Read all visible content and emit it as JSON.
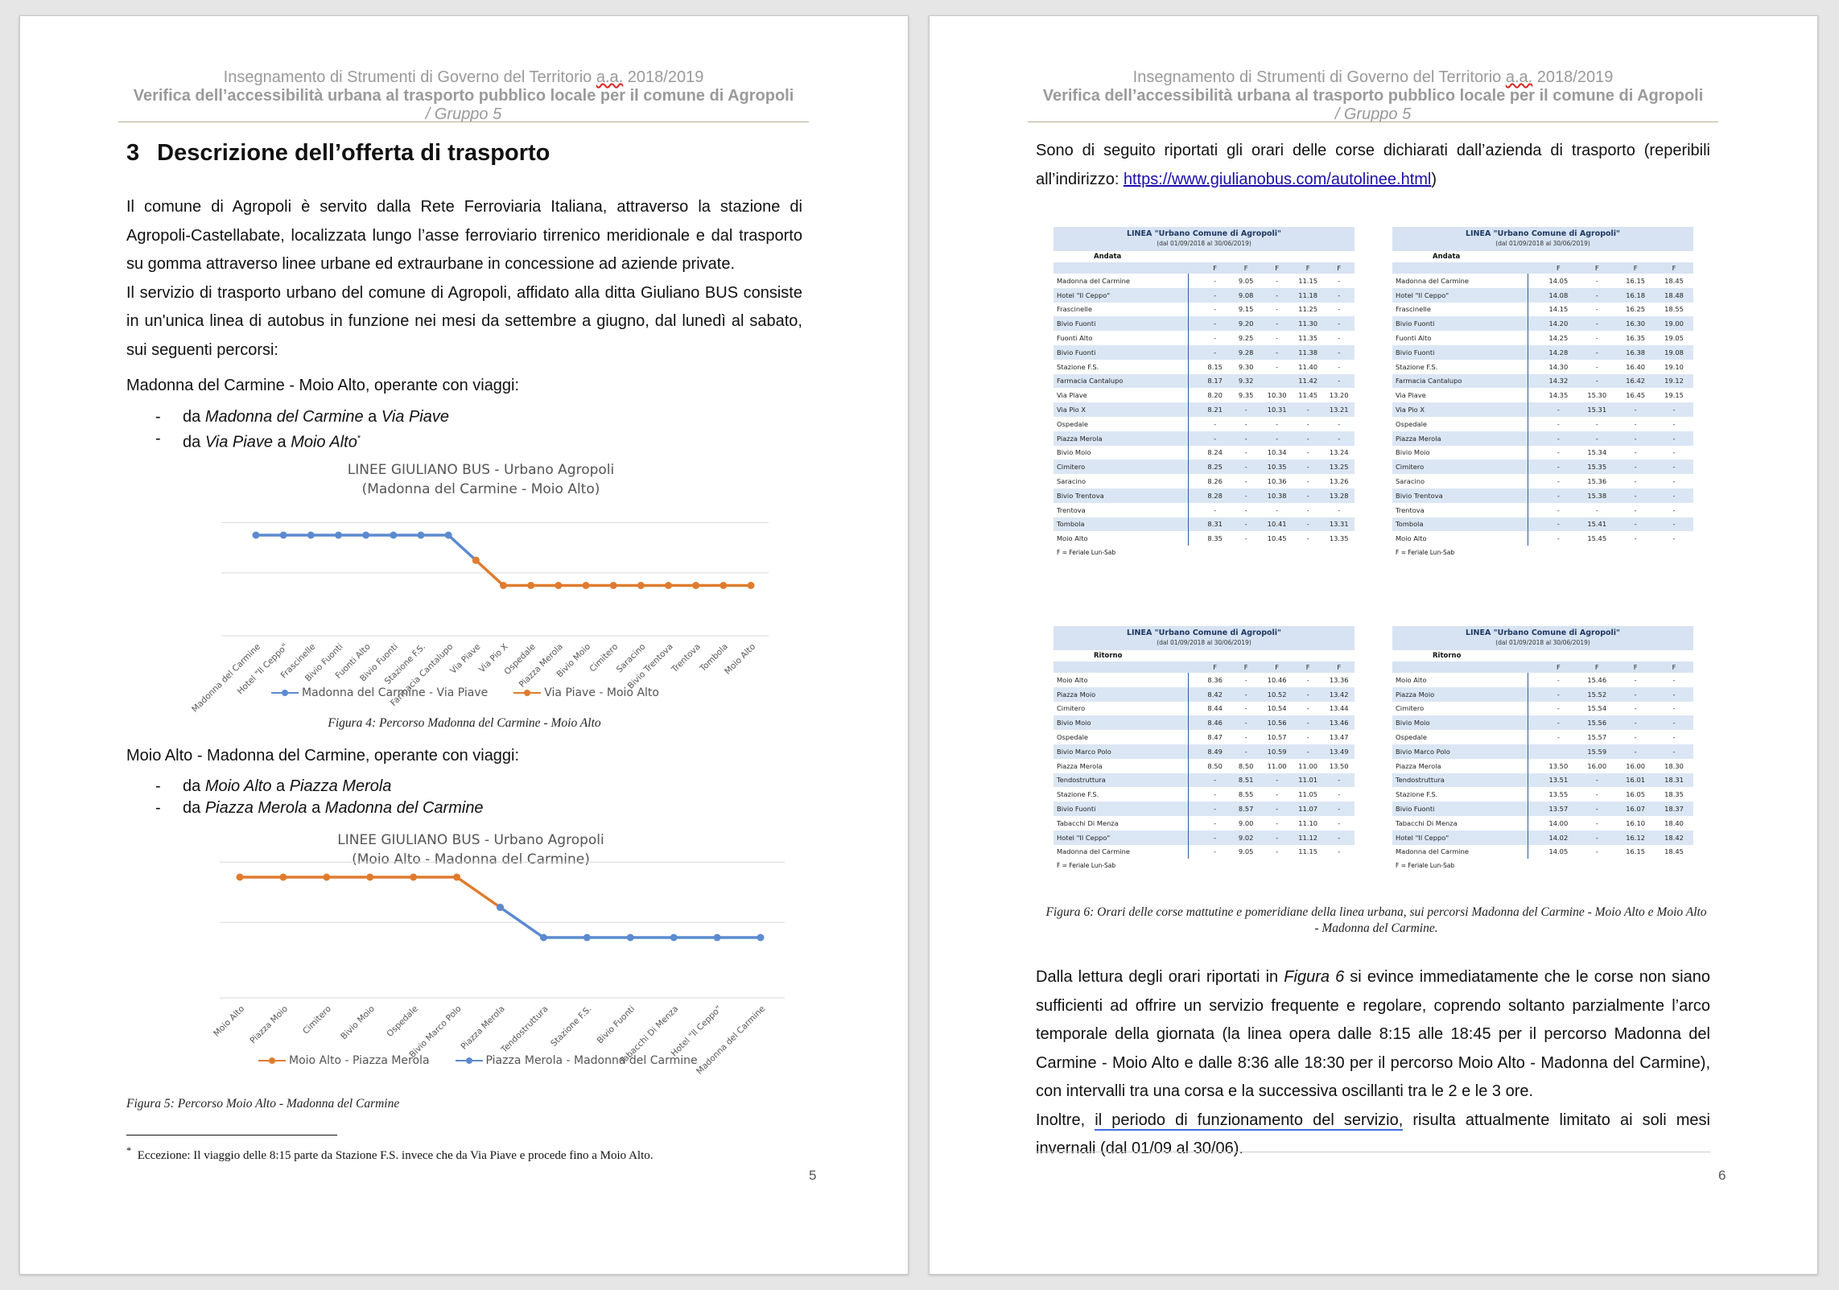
{
  "header": {
    "line1_pre": "Insegnamento di Strumenti di Governo del Territorio ",
    "line1_sq": "a.a.",
    "line1_post": " 2018/2019",
    "line2": "Verifica dell’accessibilità urbana al trasporto pubblico locale per il comune di Agropoli",
    "line3": "/ Gruppo 5"
  },
  "left": {
    "page_number": "5",
    "section_num": "3",
    "section_title": "Descrizione dell’offerta di trasporto",
    "para1": "Il comune di Agropoli è servito dalla Rete Ferroviaria Italiana, attraverso la stazione di Agropoli-Castellabate, localizzata lungo l’asse ferroviario tirrenico meridionale e dal trasporto su gomma attraverso linee urbane ed extraurbane in concessione ad aziende private.",
    "para2": "Il servizio di trasporto urbano del comune di Agropoli, affidato alla ditta Giuliano BUS consiste in un'unica linea di autobus in funzione nei mesi da settembre a giugno, dal lunedì al sabato, sui seguenti percorsi:",
    "route1_intro": "Madonna del Carmine - Moio Alto, operante con viaggi:",
    "route1_items": [
      {
        "a": "da ",
        "b": "Madonna del Carmine",
        "c": " a ",
        "d": "Via Piave",
        "sup": ""
      },
      {
        "a": "da ",
        "b": "Via Piave",
        "c": " a ",
        "d": "Moio Alto",
        "sup": "*"
      }
    ],
    "route2_intro": "Moio Alto - Madonna del Carmine, operante con viaggi:",
    "route2_items": [
      {
        "a": "da ",
        "b": "Moio Alto",
        "c": " a ",
        "d": "Piazza Merola",
        "sup": ""
      },
      {
        "a": "da ",
        "b": "Piazza Merola",
        "c": " a ",
        "d": "Madonna del Carmine",
        "sup": ""
      }
    ],
    "fig4_caption": "Figura 4: Percorso Madonna del Carmine - Moio Alto",
    "fig5_caption": "Figura 5: Percorso Moio Alto - Madonna del Carmine",
    "footnote_mark": "*",
    "footnote": "Eccezione: Il viaggio delle 8:15 parte da Stazione F.S. invece che da Via Piave e procede fino a Moio Alto."
  },
  "right": {
    "page_number": "6",
    "intro_pre": "Sono di seguito riportati gli orari delle corse dichiarati dall’azienda di trasporto (reperibili all’indirizzo: ",
    "intro_link": "https://www.giulianobus.com/autolinee.html",
    "intro_post": ")",
    "fig6_caption": "Figura 6: Orari delle corse mattutine e pomeridiane della linea urbana, sui percorsi Madonna del Carmine - Moio Alto e Moio Alto - Madonna del Carmine.",
    "para1_pre": "Dalla lettura degli orari riportati in ",
    "para1_fig": "Figura 6",
    "para1_post": " si evince immediatamente che le corse non siano sufficienti ad offrire un servizio frequente e regolare, coprendo soltanto parzialmente l’arco temporale della giornata (la linea opera dalle 8:15 alle 18:45 per il percorso Madonna del Carmine - Moio Alto e dalle 8:36 alle 18:30 per il percorso Moio Alto - Madonna del Carmine), con intervalli tra una corsa e la successiva oscillanti tra le 2 e le 3 ore.",
    "para2_pre": "Inoltre, ",
    "para2_ul": "il periodo di funzionamento del servizio,",
    "para2_post": " risulta attualmente limitato ai soli mesi invernali (dal 01/09 al 30/06)."
  },
  "timetables": [
    {
      "title": "LINEA \"Urbano Comune di Agropoli\"",
      "period": "(dal 01/09/2018 al 30/06/2019)",
      "direction": "Andata",
      "cols": [
        "F",
        "F",
        "F",
        "F",
        "F"
      ],
      "note": "F = Feriale Lun-Sab",
      "rows": [
        [
          "Madonna del Carmine",
          "-",
          "9.05",
          "-",
          "11.15",
          "-"
        ],
        [
          "Hotel \"Il Ceppo\"",
          "-",
          "9.08",
          "-",
          "11.18",
          "-"
        ],
        [
          "Frascinelle",
          "-",
          "9.15",
          "-",
          "11.25",
          "-"
        ],
        [
          "Bivio Fuonti",
          "-",
          "9.20",
          "-",
          "11.30",
          "-"
        ],
        [
          "Fuonti Alto",
          "-",
          "9.25",
          "-",
          "11.35",
          "-"
        ],
        [
          "Bivio Fuonti",
          "-",
          "9.28",
          "-",
          "11.38",
          "-"
        ],
        [
          "Stazione F.S.",
          "8.15",
          "9.30",
          "-",
          "11.40",
          "-"
        ],
        [
          "Farmacia Cantalupo",
          "8.17",
          "9.32",
          "",
          "11.42",
          "-"
        ],
        [
          "Via Piave",
          "8.20",
          "9.35",
          "10.30",
          "11.45",
          "13.20"
        ],
        [
          "Via Pio X",
          "8.21",
          "-",
          "10.31",
          "-",
          "13.21"
        ],
        [
          "Ospedale",
          "-",
          "-",
          "-",
          "-",
          "-"
        ],
        [
          "Piazza Merola",
          "-",
          "-",
          "-",
          "-",
          "-"
        ],
        [
          "Bivio Moio",
          "8.24",
          "-",
          "10.34",
          "-",
          "13.24"
        ],
        [
          "Cimitero",
          "8.25",
          "-",
          "10.35",
          "-",
          "13.25"
        ],
        [
          "Saracino",
          "8.26",
          "-",
          "10.36",
          "-",
          "13.26"
        ],
        [
          "Bivio Trentova",
          "8.28",
          "-",
          "10.38",
          "-",
          "13.28"
        ],
        [
          "Trentova",
          "-",
          "-",
          "-",
          "-",
          "-"
        ],
        [
          "Tombola",
          "8.31",
          "-",
          "10.41",
          "-",
          "13.31"
        ],
        [
          "Moio Alto",
          "8.35",
          "-",
          "10.45",
          "-",
          "13.35"
        ]
      ]
    },
    {
      "title": "LINEA \"Urbano Comune di Agropoli\"",
      "period": "(dal 01/09/2018 al 30/06/2019)",
      "direction": "Andata",
      "cols": [
        "F",
        "F",
        "F",
        "F"
      ],
      "note": "F = Feriale Lun-Sab",
      "rows": [
        [
          "Madonna del Carmine",
          "14.05",
          "-",
          "16.15",
          "18.45"
        ],
        [
          "Hotel \"Il Ceppo\"",
          "14.08",
          "-",
          "16.18",
          "18.48"
        ],
        [
          "Frascinelle",
          "14.15",
          "-",
          "16.25",
          "18.55"
        ],
        [
          "Bivio Fuonti",
          "14.20",
          "-",
          "16.30",
          "19.00"
        ],
        [
          "Fuonti Alto",
          "14.25",
          "-",
          "16.35",
          "19.05"
        ],
        [
          "Bivio Fuonti",
          "14.28",
          "-",
          "16.38",
          "19.08"
        ],
        [
          "Stazione F.S.",
          "14.30",
          "-",
          "16.40",
          "19.10"
        ],
        [
          "Farmacia Cantalupo",
          "14.32",
          "-",
          "16.42",
          "19.12"
        ],
        [
          "Via Piave",
          "14.35",
          "15.30",
          "16.45",
          "19.15"
        ],
        [
          "Via Pio X",
          "-",
          "15.31",
          "-",
          "-"
        ],
        [
          "Ospedale",
          "-",
          "-",
          "-",
          "-"
        ],
        [
          "Piazza Merola",
          "-",
          "-",
          "-",
          "-"
        ],
        [
          "Bivio Moio",
          "-",
          "15.34",
          "-",
          "-"
        ],
        [
          "Cimitero",
          "-",
          "15.35",
          "-",
          "-"
        ],
        [
          "Saracino",
          "-",
          "15.36",
          "-",
          "-"
        ],
        [
          "Bivio Trentova",
          "-",
          "15.38",
          "-",
          "-"
        ],
        [
          "Trentova",
          "-",
          "-",
          "-",
          "-"
        ],
        [
          "Tombola",
          "-",
          "15.41",
          "-",
          "-"
        ],
        [
          "Moio Alto",
          "-",
          "15.45",
          "-",
          "-"
        ]
      ]
    },
    {
      "title": "LINEA \"Urbano Comune di Agropoli\"",
      "period": "(dal 01/09/2018 al 30/06/2019)",
      "direction": "Ritorno",
      "cols": [
        "F",
        "F",
        "F",
        "F",
        "F"
      ],
      "note": "F = Feriale Lun-Sab",
      "rows": [
        [
          "Moio Alto",
          "8.36",
          "-",
          "10.46",
          "-",
          "13.36"
        ],
        [
          "Piazza Moio",
          "8.42",
          "-",
          "10.52",
          "-",
          "13.42"
        ],
        [
          "Cimitero",
          "8.44",
          "-",
          "10.54",
          "-",
          "13.44"
        ],
        [
          "Bivio Moio",
          "8.46",
          "-",
          "10.56",
          "-",
          "13.46"
        ],
        [
          "Ospedale",
          "8.47",
          "-",
          "10.57",
          "-",
          "13.47"
        ],
        [
          "Bivio Marco Polo",
          "8.49",
          "-",
          "10.59",
          "-",
          "13.49"
        ],
        [
          "Piazza Merola",
          "8.50",
          "8.50",
          "11.00",
          "11.00",
          "13.50"
        ],
        [
          "Tendostruttura",
          "-",
          "8.51",
          "-",
          "11.01",
          "-"
        ],
        [
          "Stazione F.S.",
          "-",
          "8.55",
          "-",
          "11.05",
          "-"
        ],
        [
          "Bivio Fuonti",
          "-",
          "8.57",
          "-",
          "11.07",
          "-"
        ],
        [
          "Tabacchi Di Menza",
          "-",
          "9.00",
          "-",
          "11.10",
          "-"
        ],
        [
          "Hotel \"Il Ceppo\"",
          "-",
          "9.02",
          "-",
          "11.12",
          "-"
        ],
        [
          "Madonna del Carmine",
          "-",
          "9.05",
          "-",
          "11.15",
          "-"
        ]
      ]
    },
    {
      "title": "LINEA \"Urbano Comune di Agropoli\"",
      "period": "(dal 01/09/2018 al 30/06/2019)",
      "direction": "Ritorno",
      "cols": [
        "F",
        "F",
        "F",
        "F"
      ],
      "note": "F = Feriale Lun-Sab",
      "rows": [
        [
          "Moio Alto",
          "-",
          "15.46",
          "-",
          "-"
        ],
        [
          "Piazza Moio",
          "-",
          "15.52",
          "-",
          "-"
        ],
        [
          "Cimitero",
          "-",
          "15.54",
          "-",
          "-"
        ],
        [
          "Bivio Moio",
          "-",
          "15.56",
          "-",
          "-"
        ],
        [
          "Ospedale",
          "-",
          "15.57",
          "-",
          "-"
        ],
        [
          "Bivio Marco Polo",
          "",
          "15.59",
          "-",
          "-"
        ],
        [
          "Piazza Merola",
          "13.50",
          "16.00",
          "16.00",
          "18.30"
        ],
        [
          "Tendostruttura",
          "13.51",
          "-",
          "16.01",
          "18.31"
        ],
        [
          "Stazione F.S.",
          "13.55",
          "-",
          "16.05",
          "18.35"
        ],
        [
          "Bivio Fuonti",
          "13.57",
          "-",
          "16.07",
          "18.37"
        ],
        [
          "Tabacchi Di Menza",
          "14.00",
          "-",
          "16.10",
          "18.40"
        ],
        [
          "Hotel \"Il Ceppo\"",
          "14.02",
          "-",
          "16.12",
          "18.42"
        ],
        [
          "Madonna del Carmine",
          "14.05",
          "-",
          "16.15",
          "18.45"
        ]
      ]
    }
  ],
  "chart_data": [
    {
      "type": "line",
      "title": "LINEE GIULIANO BUS - Urbano Agropoli",
      "subtitle": "(Madonna del Carmine - Moio Alto)",
      "categories": [
        "Madonna del Carmine",
        "Hotel \"Il Ceppo\"",
        "Frascinelle",
        "Bivio Fuonti",
        "Fuonti Alto",
        "Bivio Fuonti",
        "Stazione F.S.",
        "Farmacia Cantalupo",
        "Via Piave",
        "Via Pio X",
        "Ospedale",
        "Piazza Merola",
        "Bivio Moio",
        "Cimitero",
        "Saracino",
        "Bivio Trentova",
        "Trentova",
        "Tombola",
        "Moio Alto"
      ],
      "series": [
        {
          "name": "Madonna del Carmine - Via Piave",
          "color": "#5b8ad0",
          "values": [
            2,
            2,
            2,
            2,
            2,
            2,
            2,
            2,
            1.5,
            null,
            null,
            null,
            null,
            null,
            null,
            null,
            null,
            null,
            null
          ]
        },
        {
          "name": "Via Piave - Moio Alto",
          "color": "#e07b2e",
          "values": [
            null,
            null,
            null,
            null,
            null,
            null,
            null,
            null,
            1.5,
            1,
            1,
            1,
            1,
            1,
            1,
            1,
            1,
            1,
            1
          ]
        }
      ],
      "ylim": [
        0,
        2.4
      ],
      "grid": true,
      "legend": "bottom"
    },
    {
      "type": "line",
      "title": "LINEE GIULIANO BUS - Urbano Agropoli",
      "subtitle": "(Moio Alto - Madonna del Carmine)",
      "categories": [
        "Moio Alto",
        "Piazza Moio",
        "Cimitero",
        "Bivio Moio",
        "Ospedale",
        "Bivio Marco Polo",
        "Piazza Merola",
        "Tendostruttura",
        "Stazione F.S.",
        "Bivio Fuonti",
        "Tabacchi Di Menza",
        "Hotel \"Il Ceppo\"",
        "Madonna del Carmine"
      ],
      "series": [
        {
          "name": "Moio Alto - Piazza Merola",
          "color": "#e07b2e",
          "values": [
            2,
            2,
            2,
            2,
            2,
            2,
            1.5,
            null,
            null,
            null,
            null,
            null,
            null
          ]
        },
        {
          "name": "Piazza Merola - Madonna del Carmine",
          "color": "#5b8ad0",
          "values": [
            null,
            null,
            null,
            null,
            null,
            null,
            1.5,
            1,
            1,
            1,
            1,
            1,
            1
          ]
        }
      ],
      "ylim": [
        0,
        2.4
      ],
      "grid": true,
      "legend": "bottom"
    }
  ]
}
